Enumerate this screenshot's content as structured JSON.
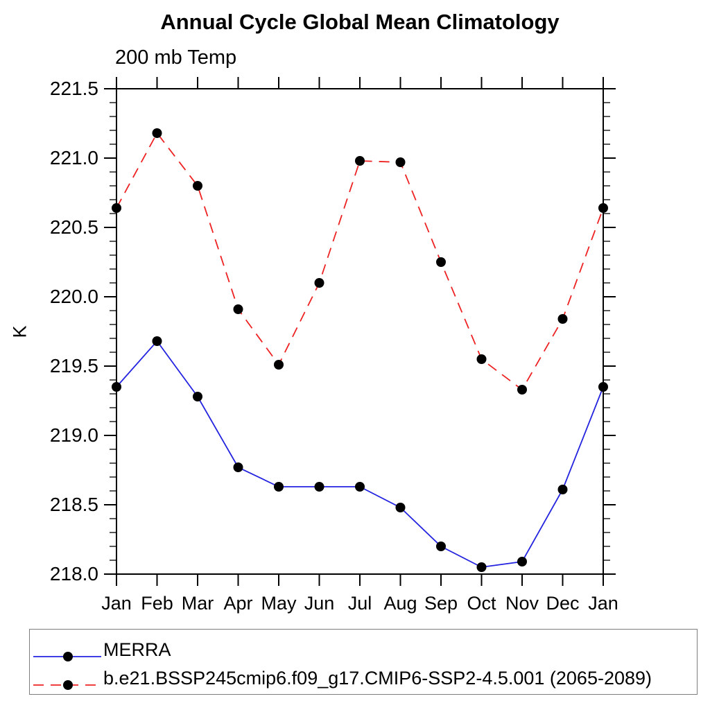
{
  "page": {
    "background": "#ffffff"
  },
  "chart_data": {
    "type": "line",
    "title": "Annual Cycle Global Mean Climatology",
    "subtitle": "200 mb Temp",
    "ylabel": "K",
    "x_categories": [
      "Jan",
      "Feb",
      "Mar",
      "Apr",
      "May",
      "Jun",
      "Jul",
      "Aug",
      "Sep",
      "Oct",
      "Nov",
      "Dec",
      "Jan"
    ],
    "y_axis": {
      "min": 218.0,
      "max": 221.5,
      "major_step": 0.5,
      "minor_step": 0.1,
      "tick_labels": [
        "218.0",
        "218.5",
        "219.0",
        "219.5",
        "220.0",
        "220.5",
        "221.0",
        "221.5"
      ]
    },
    "grid": false,
    "legend_position": "bottom",
    "marker": {
      "shape": "filled-circle",
      "color": "#000000",
      "radius": 7
    },
    "series": [
      {
        "name": "MERRA",
        "color": "#2323e0",
        "line_style": "solid",
        "values": [
          219.35,
          219.68,
          219.28,
          218.77,
          218.63,
          218.63,
          218.63,
          218.48,
          218.2,
          218.05,
          218.09,
          218.61,
          219.35
        ]
      },
      {
        "name": "b.e21.BSSP245cmip6.f09_g17.CMIP6-SSP2-4.5.001 (2065-2089)",
        "color": "#ee2222",
        "line_style": "dashed",
        "values": [
          220.64,
          221.18,
          220.8,
          219.91,
          219.51,
          220.1,
          220.98,
          220.97,
          220.25,
          219.55,
          219.33,
          219.84,
          220.64
        ]
      }
    ]
  }
}
